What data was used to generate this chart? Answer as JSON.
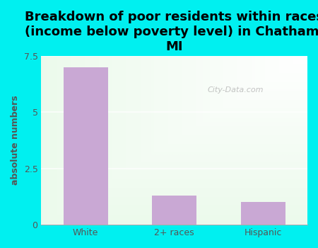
{
  "title": "Breakdown of poor residents within races\n(income below poverty level) in Chatham,\nMI",
  "categories": [
    "White",
    "2+ races",
    "Hispanic"
  ],
  "values": [
    7.0,
    1.3,
    1.0
  ],
  "bar_color": "#c9a8d4",
  "ylabel": "absolute numbers",
  "ylim": [
    0,
    7.5
  ],
  "yticks": [
    0,
    2.5,
    5.0,
    7.5
  ],
  "bg_outer": "#00f0f0",
  "watermark": "City-Data.com",
  "title_fontsize": 13,
  "ylabel_fontsize": 9,
  "tick_fontsize": 9,
  "grad_colors": [
    "#e8f5e0",
    "#f8fff8",
    "#ffffff"
  ],
  "grid_color": "#ccddcc",
  "tick_color": "#555555"
}
